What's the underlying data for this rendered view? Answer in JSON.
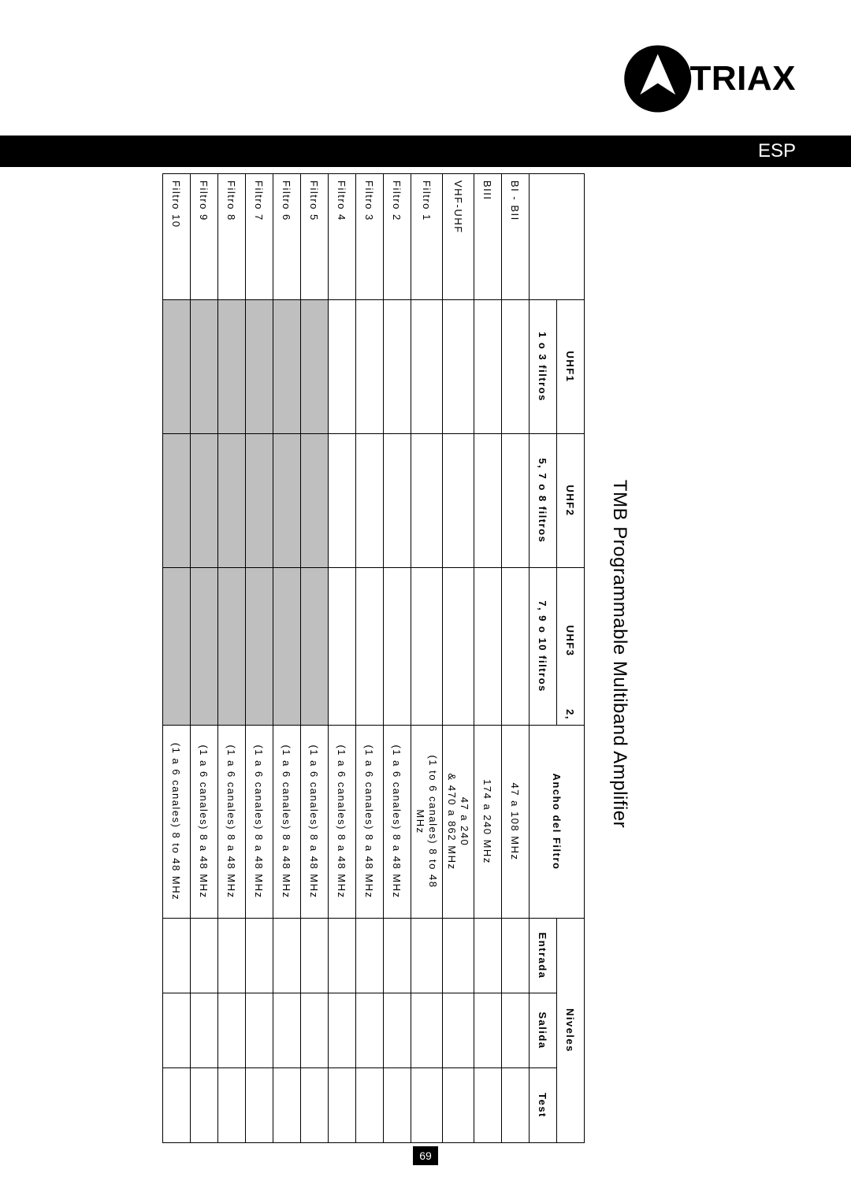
{
  "brand": "TRIAX",
  "lang_tag": "ESP",
  "doc_title": "TMB Programmable Multiband Amplifier",
  "page_number": "69",
  "colors": {
    "shaded_cell": "#bfbfbf",
    "border": "#000000",
    "bar_bg": "#000000",
    "bar_text": "#ffffff",
    "page_bg": "#ffffff"
  },
  "table": {
    "header": {
      "uhf1_top": "UHF1",
      "uhf1_sub": "1 o 3 filtros",
      "uhf2_top": "UHF2",
      "uhf2_sub": "5, 7 o 8 filtros",
      "uhf3_top": "UHF3",
      "uhf3_sub": "7, 9 o 10 filtros",
      "uhf3_right_frag": "2,",
      "filter_width": "Ancho del Filtro",
      "levels": "Niveles",
      "lvl_in": "Entrada",
      "lvl_out": "Salida",
      "lvl_test": "Test"
    },
    "rows": [
      {
        "label": "BI - BII",
        "shaded": false,
        "fw": "47 a 108 MHz"
      },
      {
        "label": "BIII",
        "shaded": false,
        "fw": "174 a 240 MHz"
      },
      {
        "label": "VHF-UHF",
        "shaded": false,
        "fw_top": "47 a 240",
        "fw_bot": "& 470 a 862 MHz"
      },
      {
        "label": "Filtro 1",
        "shaded": false,
        "fw_top": "(1 to 6 canales) 8 to 48",
        "fw_bot": "MHz"
      },
      {
        "label": "Filtro 2",
        "shaded": false,
        "fw": "(1 a 6 canales) 8 a 48 MHz"
      },
      {
        "label": "Filtro 3",
        "shaded": false,
        "fw": "(1 a 6 canales) 8 a 48 MHz"
      },
      {
        "label": "Filtro 4",
        "shaded": false,
        "fw": "(1 a 6 canales) 8 a 48 MHz"
      },
      {
        "label": "Filtro 5",
        "shaded": true,
        "fw": "(1 a 6 canales) 8 a 48 MHz"
      },
      {
        "label": "Filtro 6",
        "shaded": true,
        "fw": "(1 a 6 canales) 8 a 48 MHz"
      },
      {
        "label": "Filtro 7",
        "shaded": true,
        "fw": "(1 a 6 canales) 8 a 48 MHz"
      },
      {
        "label": "Filtro 8",
        "shaded": true,
        "fw": "(1 a 6 canales) 8 a 48 MHz"
      },
      {
        "label": "Filtro 9",
        "shaded": true,
        "fw": "(1 a 6 canales) 8 a 48 MHz"
      },
      {
        "label": "Filtro 10",
        "shaded": true,
        "fw": "(1 a 6 canales) 8 to 48 MHz"
      }
    ]
  }
}
